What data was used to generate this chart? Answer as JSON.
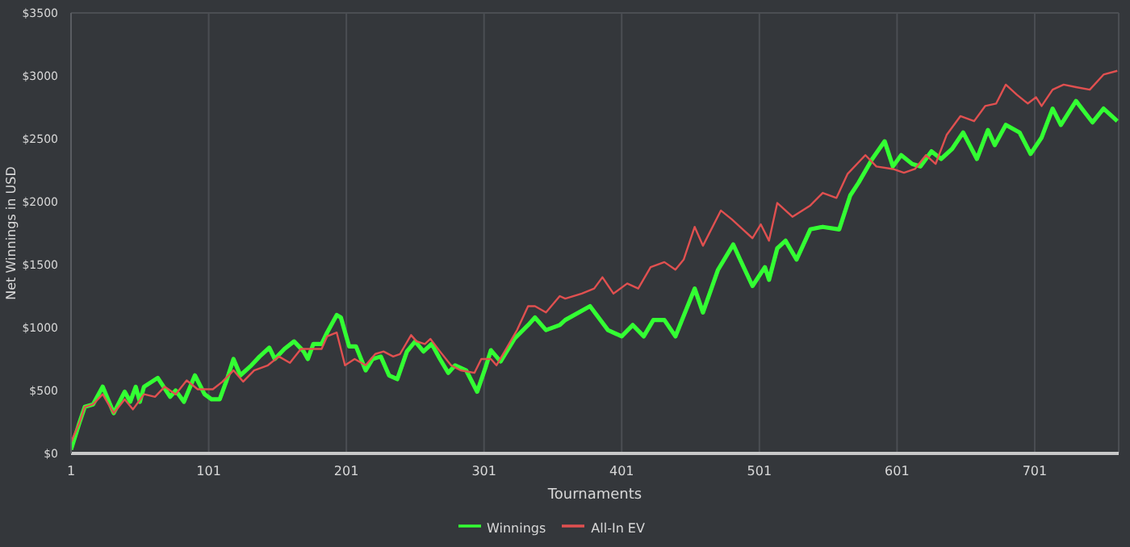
{
  "chart_data": {
    "type": "line",
    "xlabel": "Tournaments",
    "ylabel": "Net Winnings in USD",
    "xlim": [
      1,
      762
    ],
    "xticks": [
      1,
      101,
      201,
      301,
      401,
      501,
      601,
      701
    ],
    "ylim": [
      0,
      3500
    ],
    "yticks": [
      {
        "value": 0,
        "label": "$0"
      },
      {
        "value": 500,
        "label": "$500"
      },
      {
        "value": 1000,
        "label": "$1000"
      },
      {
        "value": 1500,
        "label": "$1500"
      },
      {
        "value": 2000,
        "label": "$2000"
      },
      {
        "value": 2500,
        "label": "$2500"
      },
      {
        "value": 3000,
        "label": "$3000"
      },
      {
        "value": 3500,
        "label": "$3500"
      }
    ],
    "grid": true,
    "legend": "bottom",
    "marker": "none",
    "line_style": "solid",
    "series": [
      {
        "name": "Winnings",
        "color": "#33ff33",
        "x": [
          1,
          7,
          11,
          17,
          24,
          32,
          40,
          44,
          48,
          51,
          54,
          64,
          73,
          77,
          83,
          91,
          98,
          103,
          109,
          114,
          119,
          124,
          132,
          138,
          145,
          149,
          156,
          163,
          170,
          173,
          177,
          183,
          187,
          194,
          197,
          203,
          208,
          215,
          220,
          226,
          232,
          238,
          245,
          251,
          257,
          263,
          269,
          275,
          280,
          288,
          296,
          302,
          306,
          313,
          323,
          333,
          338,
          346,
          356,
          360,
          378,
          391,
          401,
          409,
          417,
          424,
          432,
          440,
          454,
          460,
          471,
          482,
          487,
          496,
          505,
          508,
          514,
          520,
          528,
          538,
          547,
          559,
          567,
          573,
          583,
          592,
          598,
          604,
          612,
          618,
          626,
          633,
          641,
          649,
          659,
          667,
          672,
          680,
          690,
          698,
          706,
          714,
          720,
          731,
          743,
          751,
          757,
          761
        ],
        "values": [
          30,
          240,
          370,
          390,
          530,
          320,
          490,
          410,
          530,
          410,
          530,
          600,
          450,
          500,
          410,
          620,
          470,
          430,
          430,
          580,
          750,
          620,
          700,
          770,
          840,
          750,
          830,
          890,
          810,
          750,
          870,
          870,
          960,
          1100,
          1080,
          850,
          850,
          660,
          750,
          770,
          620,
          590,
          810,
          890,
          810,
          870,
          750,
          640,
          700,
          660,
          490,
          680,
          820,
          730,
          910,
          1020,
          1080,
          980,
          1020,
          1060,
          1170,
          980,
          930,
          1020,
          930,
          1060,
          1060,
          930,
          1310,
          1120,
          1460,
          1660,
          1540,
          1330,
          1480,
          1380,
          1630,
          1690,
          1540,
          1780,
          1800,
          1780,
          2050,
          2150,
          2340,
          2480,
          2280,
          2370,
          2300,
          2280,
          2400,
          2340,
          2420,
          2550,
          2340,
          2570,
          2450,
          2610,
          2550,
          2380,
          2510,
          2740,
          2610,
          2800,
          2630,
          2740,
          2680,
          2640
        ]
      },
      {
        "name": "All-In EV",
        "color": "#e05050",
        "x": [
          1,
          7,
          11,
          17,
          24,
          32,
          40,
          46,
          54,
          62,
          69,
          77,
          85,
          93,
          104,
          111,
          119,
          126,
          134,
          144,
          152,
          160,
          168,
          176,
          183,
          187,
          194,
          200,
          207,
          215,
          222,
          228,
          235,
          240,
          248,
          252,
          258,
          262,
          269,
          277,
          284,
          294,
          299,
          306,
          310,
          317,
          325,
          333,
          338,
          346,
          356,
          360,
          372,
          381,
          387,
          395,
          405,
          413,
          422,
          432,
          440,
          446,
          454,
          460,
          473,
          481,
          489,
          496,
          502,
          508,
          514,
          525,
          538,
          547,
          557,
          565,
          578,
          586,
          598,
          606,
          614,
          622,
          629,
          637,
          647,
          657,
          665,
          673,
          680,
          688,
          696,
          702,
          706,
          714,
          722,
          731,
          741,
          751,
          761
        ],
        "values": [
          90,
          240,
          370,
          390,
          470,
          320,
          430,
          350,
          470,
          450,
          530,
          470,
          580,
          510,
          510,
          570,
          660,
          570,
          660,
          700,
          770,
          720,
          830,
          830,
          830,
          930,
          960,
          700,
          750,
          700,
          790,
          810,
          770,
          790,
          940,
          890,
          870,
          910,
          810,
          700,
          660,
          640,
          750,
          750,
          700,
          830,
          980,
          1170,
          1170,
          1120,
          1250,
          1230,
          1270,
          1310,
          1400,
          1270,
          1350,
          1310,
          1480,
          1520,
          1460,
          1540,
          1800,
          1650,
          1930,
          1860,
          1780,
          1710,
          1820,
          1690,
          1990,
          1880,
          1970,
          2070,
          2030,
          2220,
          2370,
          2280,
          2260,
          2230,
          2260,
          2370,
          2300,
          2530,
          2680,
          2640,
          2760,
          2780,
          2930,
          2850,
          2780,
          2830,
          2760,
          2890,
          2930,
          2910,
          2890,
          3010,
          3040
        ]
      }
    ]
  }
}
